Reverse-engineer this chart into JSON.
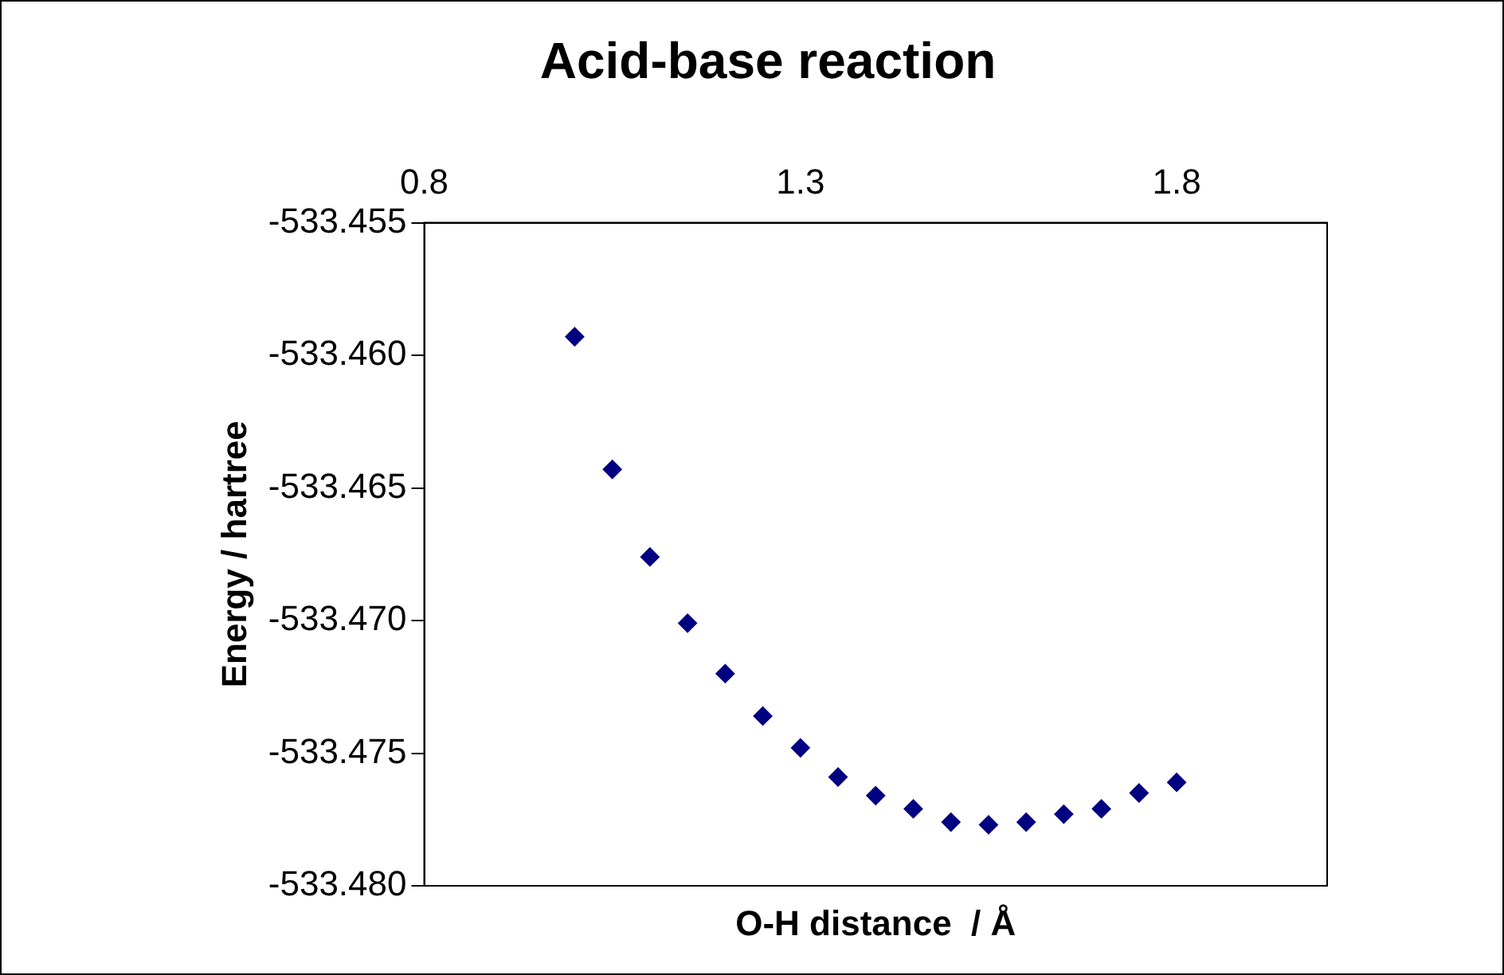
{
  "chart_data": {
    "type": "scatter",
    "title": "Acid-base reaction",
    "xlabel": "O-H distance  / Å",
    "ylabel": "Energy / hartree",
    "x": [
      1.0,
      1.05,
      1.1,
      1.15,
      1.2,
      1.25,
      1.3,
      1.35,
      1.4,
      1.45,
      1.5,
      1.55,
      1.6,
      1.65,
      1.7,
      1.75,
      1.8
    ],
    "series": [
      {
        "color": "#000080",
        "values": [
          -533.4593,
          -533.4643,
          -533.4676,
          -533.4701,
          -533.472,
          -533.4736,
          -533.4748,
          -533.4759,
          -533.4766,
          -533.4771,
          -533.4776,
          -533.4777,
          -533.4776,
          -533.4773,
          -533.4771,
          -533.4765,
          -533.4761
        ]
      }
    ],
    "xlim": [
      0.8,
      2.0
    ],
    "xticks": [
      0.8,
      1.3,
      1.8
    ],
    "ylim": [
      -533.48,
      -533.455
    ],
    "yticks": [
      {
        "value": -533.48,
        "label": "-533.480"
      },
      {
        "value": -533.475,
        "label": "-533.475"
      },
      {
        "value": -533.47,
        "label": "-533.470"
      },
      {
        "value": -533.465,
        "label": "-533.465"
      },
      {
        "value": -533.46,
        "label": "-533.460"
      },
      {
        "value": -533.455,
        "label": "-533.455"
      }
    ],
    "grid": false,
    "legend": false,
    "marker": "diamond"
  }
}
